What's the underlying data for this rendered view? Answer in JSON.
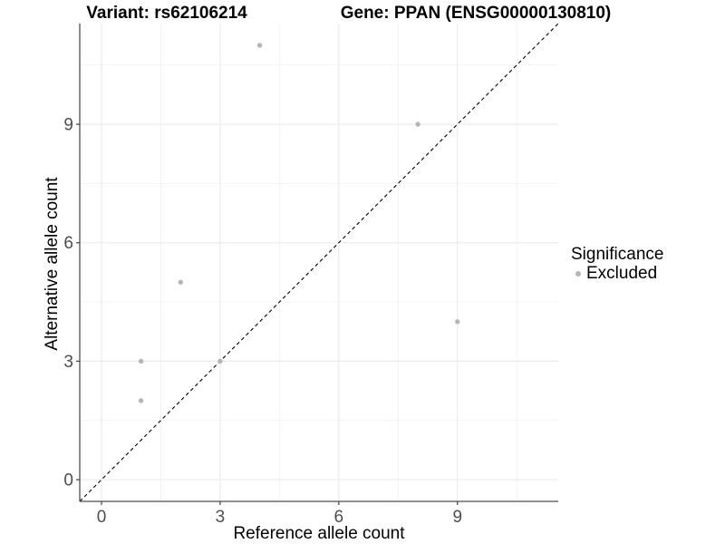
{
  "chart_data": {
    "type": "scatter",
    "title_left": "Variant: rs62106214",
    "title_right": "Gene: PPAN (ENSG00000130810)",
    "xlabel": "Reference allele count",
    "ylabel": "Alternative allele count",
    "xlim": [
      -0.55,
      11.55
    ],
    "ylim": [
      -0.55,
      11.55
    ],
    "x_ticks": [
      0,
      3,
      6,
      9
    ],
    "y_ticks": [
      0,
      3,
      6,
      9
    ],
    "x_minor_ticks": [
      1.5,
      4.5,
      7.5,
      10.5
    ],
    "y_minor_ticks": [
      1.5,
      4.5,
      7.5,
      10.5
    ],
    "grid": true,
    "series": [
      {
        "name": "Excluded",
        "color": "#b5b5b5",
        "points": [
          [
            1,
            2
          ],
          [
            1,
            3
          ],
          [
            2,
            5
          ],
          [
            3,
            3
          ],
          [
            4,
            11
          ],
          [
            8,
            9
          ],
          [
            9,
            4
          ]
        ]
      }
    ],
    "reference_line": {
      "type": "identity",
      "label": "y = x",
      "style": "dashed",
      "color": "#000000"
    },
    "legend": {
      "title": "Significance",
      "position": "right",
      "items": [
        {
          "label": "Excluded",
          "color": "#b5b5b5"
        }
      ]
    },
    "colors": {
      "background": "#ffffff",
      "grid_major": "#ebebeb",
      "grid_minor": "#f0f0f0",
      "axis": "#4d4d4d",
      "tick_label": "#4d4d4d",
      "title": "#000000"
    }
  }
}
